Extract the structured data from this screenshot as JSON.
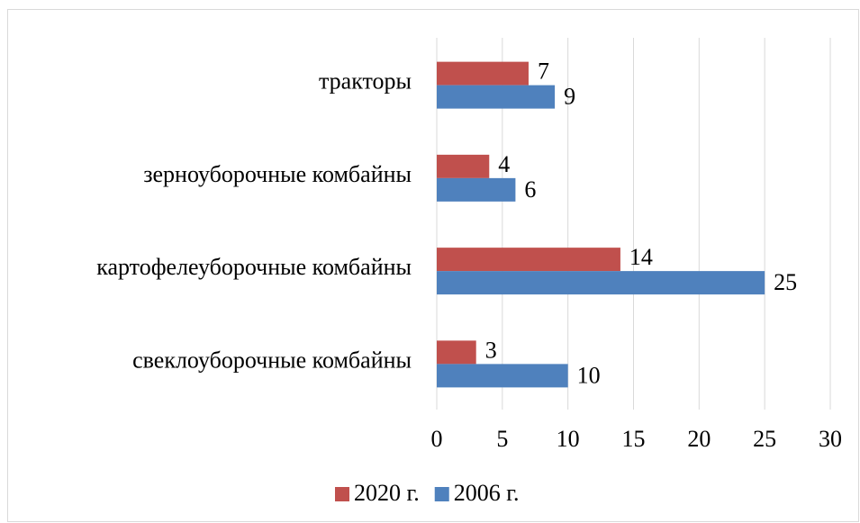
{
  "chart_data": {
    "type": "bar",
    "orientation": "horizontal",
    "categories": [
      "тракторы",
      "зерноуборочные комбайны",
      "картофелеуборочные комбайны",
      "свеклоуборочные комбайны"
    ],
    "series": [
      {
        "name": "2020 г.",
        "color": "#c0504d",
        "values": [
          7,
          4,
          14,
          3
        ]
      },
      {
        "name": "2006 г.",
        "color": "#4f81bd",
        "values": [
          9,
          6,
          25,
          10
        ]
      }
    ],
    "xlim": [
      0,
      30
    ],
    "xticks": [
      0,
      5,
      10,
      15,
      20,
      25,
      30
    ],
    "grid": true,
    "legend": "bottom"
  }
}
